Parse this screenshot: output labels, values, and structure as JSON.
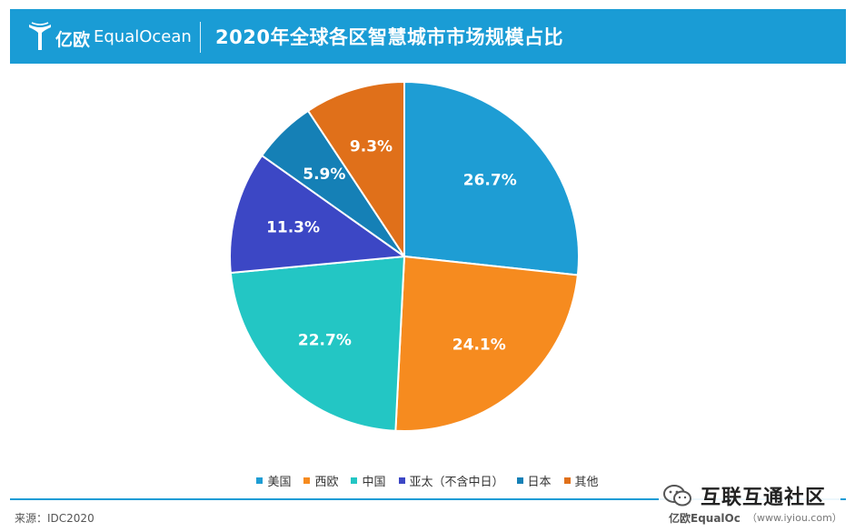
{
  "header": {
    "brand_cn": "亿欧",
    "brand_en": "EqualOcean",
    "title": "2020年全球各区智慧城市市场规模占比"
  },
  "chart_data": {
    "type": "pie",
    "title": "2020年全球各区智慧城市市场规模占比",
    "unit": "%",
    "start": "12 o'clock",
    "direction": "clockwise",
    "slices": [
      {
        "label": "美国",
        "value": 26.7,
        "display": "26.7%",
        "color": "#1e9dd4"
      },
      {
        "label": "西欧",
        "value": 24.1,
        "display": "24.1%",
        "color": "#f68b1f"
      },
      {
        "label": "中国",
        "value": 22.7,
        "display": "22.7%",
        "color": "#23c6c4"
      },
      {
        "label": "亚太（不含中日）",
        "value": 11.3,
        "display": "11.3%",
        "color": "#3c47c5"
      },
      {
        "label": "日本",
        "value": 5.9,
        "display": "5.9%",
        "color": "#1580b6"
      },
      {
        "label": "其他",
        "value": 9.3,
        "display": "9.3%",
        "color": "#e0701a"
      }
    ],
    "legend": {
      "position": "bottom",
      "entries": [
        "美国",
        "西欧",
        "中国",
        "亚太（不含中日）",
        "日本",
        "其他"
      ]
    }
  },
  "footer": {
    "source": "来源：IDC2020",
    "brand": "亿欧EqualOc",
    "url": "（www.iyiou.com）"
  },
  "watermark": {
    "text": "互联互通社区"
  }
}
